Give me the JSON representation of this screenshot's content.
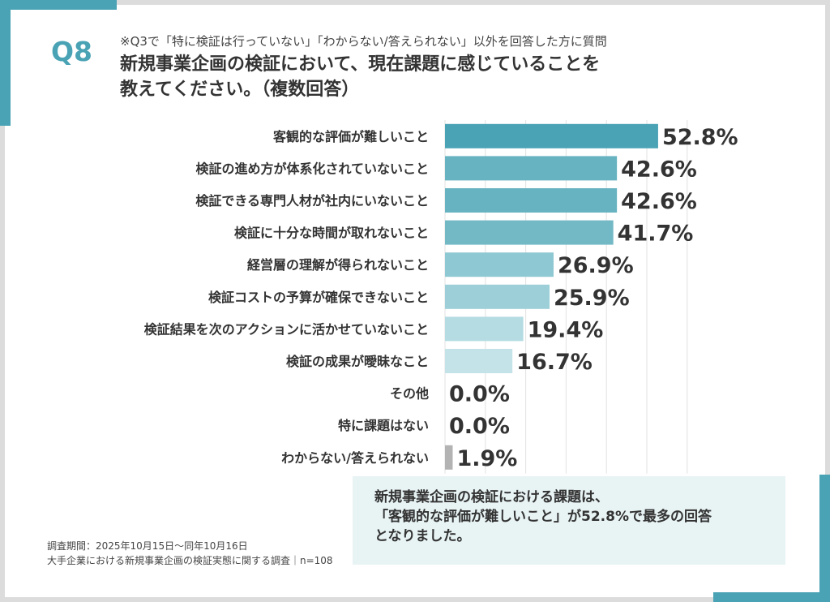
{
  "header": {
    "question_number": "Q8",
    "subtitle": "※Q3で「特に検証は行っていない」「わからない/答えられない」以外を回答した方に質問",
    "title_line1": "新規事業企画の検証において、現在課題に感じていることを",
    "title_line2": "教えてください。（複数回答）"
  },
  "colors": {
    "accent": "#4aa3b5",
    "background": "#dcdcdc",
    "summary_bg": "#e8f3f4",
    "other_bar": "#b3b3b3"
  },
  "chart_data": {
    "type": "bar",
    "orientation": "horizontal",
    "categories": [
      "客観的な評価が難しいこと",
      "検証の進め方が体系化されていないこと",
      "検証できる専門人材が社内にいないこと",
      "検証に十分な時間が取れないこと",
      "経営層の理解が得られないこと",
      "検証コストの予算が確保できないこと",
      "検証結果を次のアクションに活かせていないこと",
      "検証の成果が曖昧なこと",
      "その他",
      "特に課題はない",
      "わからない/答えられない"
    ],
    "values": [
      52.8,
      42.6,
      42.6,
      41.7,
      26.9,
      25.9,
      19.4,
      16.7,
      0.0,
      0.0,
      1.9
    ],
    "value_labels": [
      "52.8%",
      "42.6%",
      "42.6%",
      "41.7%",
      "26.9%",
      "25.9%",
      "19.4%",
      "16.7%",
      "0.0%",
      "0.0%",
      "1.9%"
    ],
    "bar_colors": [
      "#4aa3b5",
      "#68b3c1",
      "#68b3c1",
      "#72b8c5",
      "#8ec8d2",
      "#9ccfd8",
      "#b4dce2",
      "#c4e3e8",
      "#c4e3e8",
      "#c4e3e8",
      "#b3b3b3"
    ],
    "xlim": [
      0,
      60
    ],
    "grid": true
  },
  "footer": {
    "survey_period": "調査期間：2025年10月15日〜同年10月16日",
    "survey_name": "大手企業における新規事業企画の検証実態に関する調査｜n=108"
  },
  "summary": {
    "line1": "新規事業企画の検証における課題は、",
    "line2": "「客観的な評価が難しいこと」が52.8%で最多の回答",
    "line3": "となりました。"
  }
}
